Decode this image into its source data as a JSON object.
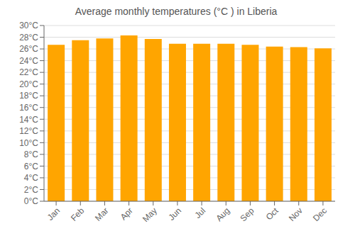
{
  "chart_data": {
    "type": "bar",
    "title": "Average monthly temperatures (°C ) in Liberia",
    "categories": [
      "Jan",
      "Feb",
      "Mar",
      "Apr",
      "May",
      "Jun",
      "Jul",
      "Aug",
      "Sep",
      "Oct",
      "Nov",
      "Dec"
    ],
    "values": [
      26.7,
      27.5,
      27.8,
      28.3,
      27.7,
      26.9,
      26.9,
      26.9,
      26.7,
      26.4,
      26.3,
      26.1
    ],
    "color": "#FFA500",
    "ylim": [
      0,
      30
    ],
    "yticks": [
      {
        "value": 0,
        "label": "0°C"
      },
      {
        "value": 2,
        "label": "2°C"
      },
      {
        "value": 4,
        "label": "4°C"
      },
      {
        "value": 6,
        "label": "6°C"
      },
      {
        "value": 8,
        "label": "8°C"
      },
      {
        "value": 10,
        "label": "10°C"
      },
      {
        "value": 12,
        "label": "12°C"
      },
      {
        "value": 14,
        "label": "14°C"
      },
      {
        "value": 16,
        "label": "16°C"
      },
      {
        "value": 18,
        "label": "18°C"
      },
      {
        "value": 20,
        "label": "20°C"
      },
      {
        "value": 22,
        "label": "22°C"
      },
      {
        "value": 24,
        "label": "24°C"
      },
      {
        "value": 26,
        "label": "26°C"
      },
      {
        "value": 28,
        "label": "28°C"
      },
      {
        "value": 30,
        "label": "30°C"
      }
    ],
    "grid": true
  }
}
